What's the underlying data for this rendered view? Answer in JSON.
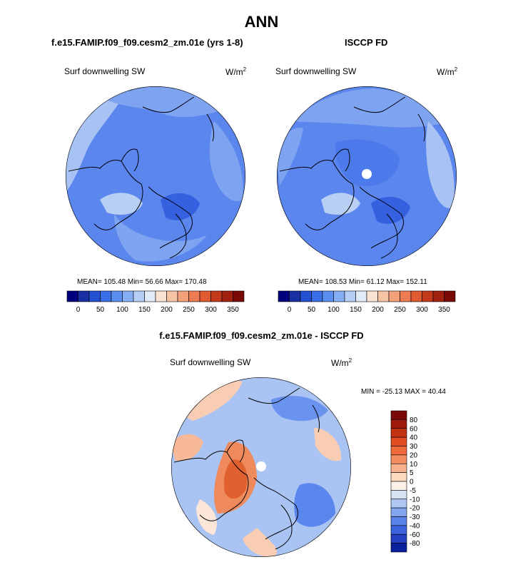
{
  "page_title": "ANN",
  "colors": {
    "map_base": "#4f7fee",
    "map_mid": "#6e97f0",
    "map_light": "#a9c3f3",
    "map_pale": "#d6e2f5",
    "coast": "#000000"
  },
  "chart_data": [
    {
      "type": "heatmap",
      "projection": "north-polar-stereographic",
      "title": "f.e15.FAMIP.f09_f09.cesm2_zm.01e (yrs 1-8)",
      "variable_label": "Surf downwelling SW",
      "units_base": "W/m",
      "units_exp": "2",
      "stats_text": "MEAN= 105.48  Min=  56.66  Max= 170.48",
      "mean": 105.48,
      "min": 56.66,
      "max": 170.48,
      "colorbar": {
        "orientation": "horizontal",
        "tick_labels": [
          "0",
          "50",
          "100",
          "150",
          "200",
          "250",
          "300",
          "350"
        ],
        "colors": [
          "#00007f",
          "#1a2fa3",
          "#2450d4",
          "#3a6ee6",
          "#5a8ef0",
          "#86aef3",
          "#b6cdf5",
          "#e0ebf7",
          "#fbe3d4",
          "#f7c3a5",
          "#f2a17a",
          "#ec7c54",
          "#e05a34",
          "#c33a1c",
          "#a12010",
          "#7a0a05"
        ]
      }
    },
    {
      "type": "heatmap",
      "projection": "north-polar-stereographic",
      "title": "ISCCP FD",
      "variable_label": "Surf downwelling SW",
      "units_base": "W/m",
      "units_exp": "2",
      "stats_text": "MEAN= 108.53  Min=  61.12  Max= 152.11",
      "mean": 108.53,
      "min": 61.12,
      "max": 152.11,
      "colorbar": {
        "orientation": "horizontal",
        "tick_labels": [
          "0",
          "50",
          "100",
          "150",
          "200",
          "250",
          "300",
          "350"
        ],
        "colors": [
          "#00007f",
          "#1a2fa3",
          "#2450d4",
          "#3a6ee6",
          "#5a8ef0",
          "#86aef3",
          "#b6cdf5",
          "#e0ebf7",
          "#fbe3d4",
          "#f7c3a5",
          "#f2a17a",
          "#ec7c54",
          "#e05a34",
          "#c33a1c",
          "#a12010",
          "#7a0a05"
        ]
      }
    },
    {
      "type": "heatmap",
      "projection": "north-polar-stereographic",
      "title": "f.e15.FAMIP.f09_f09.cesm2_zm.01e - ISCCP FD",
      "variable_label": "Surf downwelling SW",
      "units_base": "W/m",
      "units_exp": "2",
      "stats_text": "MIN = -25.13 MAX =  40.44",
      "min": -25.13,
      "max": 40.44,
      "colorbar": {
        "orientation": "vertical",
        "tick_labels": [
          "80",
          "60",
          "40",
          "30",
          "20",
          "10",
          "5",
          "0",
          "-5",
          "-10",
          "-20",
          "-30",
          "-40",
          "-60",
          "-80"
        ],
        "colors": [
          "#7a0a05",
          "#a01a0c",
          "#c43214",
          "#e04e22",
          "#f06a3c",
          "#f58d62",
          "#f8b38e",
          "#fcd9bf",
          "#fdf0e6",
          "#d7e4f6",
          "#aec6f2",
          "#84a6ee",
          "#5a84ea",
          "#3a62dc",
          "#2440c0",
          "#0a1f9a"
        ]
      }
    }
  ]
}
